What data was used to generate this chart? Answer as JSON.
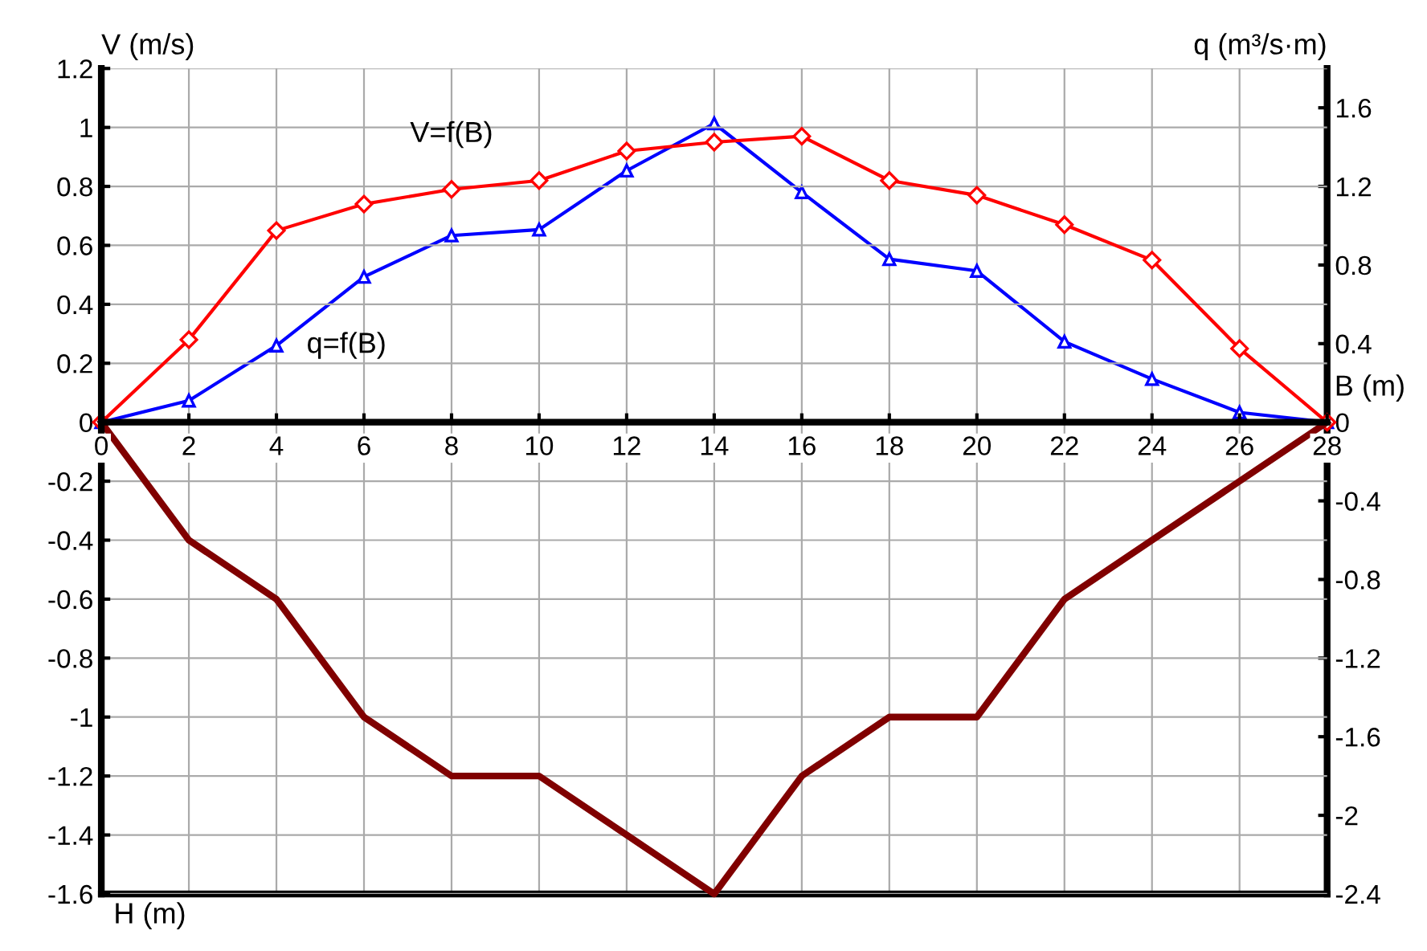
{
  "chart_data": {
    "type": "line",
    "xlabel": "B (m)",
    "ylabel": "V (m/s)",
    "y2label": "q (m³/s·m)",
    "annotations": [
      "H (m)"
    ],
    "x": [
      0,
      2,
      4,
      6,
      8,
      10,
      12,
      14,
      16,
      18,
      20,
      22,
      24,
      26,
      28
    ],
    "xlim": [
      0,
      28
    ],
    "xticks": [
      0,
      2,
      4,
      6,
      8,
      10,
      12,
      14,
      16,
      18,
      20,
      22,
      24,
      26,
      28
    ],
    "ylim": [
      -1.6,
      1.2
    ],
    "yticks": [
      -1.6,
      -1.4,
      -1.2,
      -1,
      -0.8,
      -0.6,
      -0.4,
      -0.2,
      0,
      0.2,
      0.4,
      0.6,
      0.8,
      1,
      1.2
    ],
    "y2lim": [
      -2.4,
      1.8
    ],
    "y2ticks": [
      -2.4,
      -2,
      -1.6,
      -1.2,
      -0.8,
      -0.4,
      0,
      0.4,
      0.8,
      1.2,
      1.6
    ],
    "grid": true,
    "series": [
      {
        "name": "V=f(B)",
        "color": "#ff0000",
        "marker": "diamond",
        "values": [
          0,
          0.28,
          0.65,
          0.74,
          0.79,
          0.82,
          0.92,
          0.95,
          0.97,
          0.82,
          0.77,
          0.67,
          0.55,
          0.25,
          0
        ]
      },
      {
        "name": "q=f(B)",
        "color": "#0000ff",
        "marker": "triangle",
        "axis": "y2",
        "values": [
          0,
          0.11,
          0.39,
          0.74,
          0.95,
          0.98,
          1.28,
          1.52,
          1.17,
          0.83,
          0.77,
          0.41,
          0.22,
          0.05,
          0
        ]
      },
      {
        "color": "#800000",
        "marker": "none",
        "values": [
          0,
          -0.4,
          -0.6,
          -1.0,
          -1.2,
          -1.2,
          -1.4,
          -1.6,
          -1.2,
          -1.0,
          -1.0,
          -0.6,
          -0.4,
          -0.2,
          0
        ]
      }
    ]
  }
}
